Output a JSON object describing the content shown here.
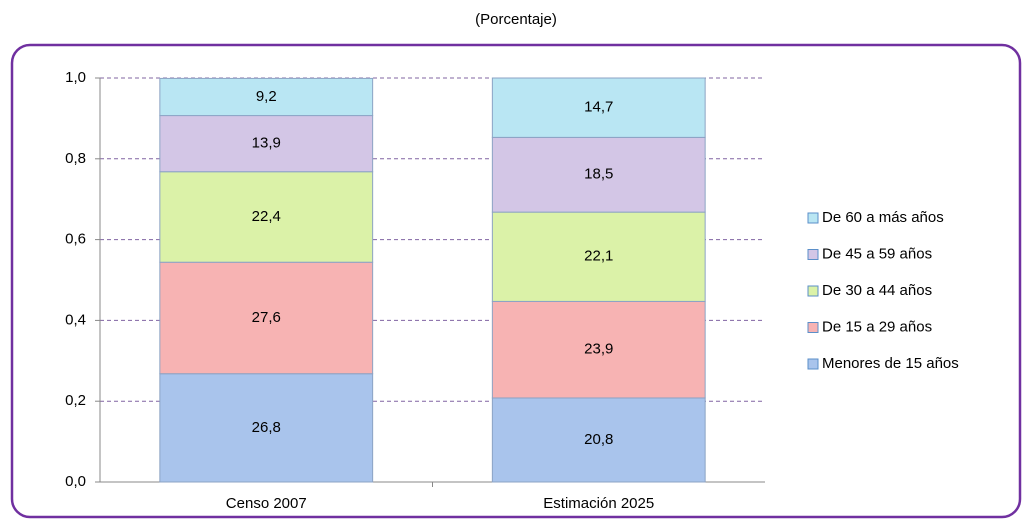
{
  "chart_data": {
    "type": "stacked_bar",
    "title": "(Porcentaje)",
    "categories": [
      "Censo 2007",
      "Estimación 2025"
    ],
    "series": [
      {
        "name": "Menores de 15 años",
        "color": "#a9c4ec",
        "values": [
          0.268,
          0.208
        ],
        "value_labels": [
          "26,8",
          "20,8"
        ]
      },
      {
        "name": "De 15 a 29 años",
        "color": "#f7b3b3",
        "values": [
          0.276,
          0.239
        ],
        "value_labels": [
          "27,6",
          "23,9"
        ]
      },
      {
        "name": "De 30 a 44 años",
        "color": "#dbf2a8",
        "values": [
          0.224,
          0.221
        ],
        "value_labels": [
          "22,4",
          "22,1"
        ]
      },
      {
        "name": "De 45 a 59 años",
        "color": "#d3c6e6",
        "values": [
          0.139,
          0.185
        ],
        "value_labels": [
          "13,9",
          "18,5"
        ]
      },
      {
        "name": "De  60 a más años",
        "color": "#b9e6f3",
        "values": [
          0.092,
          0.147
        ],
        "value_labels": [
          "9,2",
          "14,7"
        ]
      }
    ],
    "ylim": [
      0,
      1
    ],
    "yticks": [
      {
        "value": 0,
        "label": "0,0"
      },
      {
        "value": 0.2,
        "label": "0,2"
      },
      {
        "value": 0.4,
        "label": "0,4"
      },
      {
        "value": 0.6,
        "label": "0,6"
      },
      {
        "value": 0.8,
        "label": "0,8"
      },
      {
        "value": 1,
        "label": "1,0"
      }
    ],
    "grid": true,
    "legend": "right"
  }
}
